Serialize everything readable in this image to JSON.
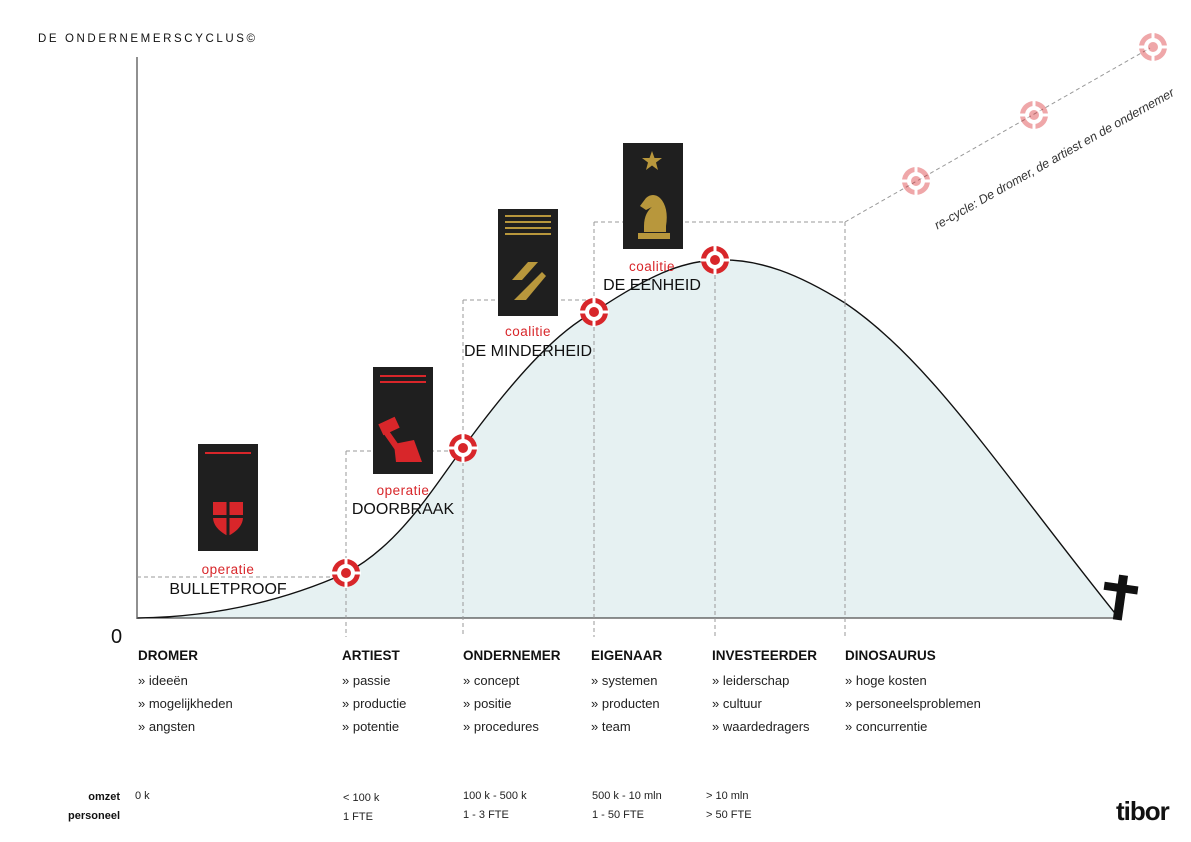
{
  "title": "DE ONDERNEMERSCYCLUS©",
  "axis": {
    "origin_label": "0"
  },
  "recycle_label": "re-cycle: De dromer, de artiest en de ondernemer",
  "phases": [
    {
      "name": "DROMER",
      "items": [
        "» ideeën",
        "» mogelijkheden",
        "» angsten"
      ],
      "omzet": "0 k",
      "personeel": ""
    },
    {
      "name": "ARTIEST",
      "items": [
        "» passie",
        "» productie",
        "» potentie"
      ],
      "omzet": "< 100 k",
      "personeel": "1 FTE"
    },
    {
      "name": "ONDERNEMER",
      "items": [
        "» concept",
        "» positie",
        "» procedures"
      ],
      "omzet": "100 k - 500 k",
      "personeel": "1 - 3 FTE"
    },
    {
      "name": "EIGENAAR",
      "items": [
        "» systemen",
        "» producten",
        "» team"
      ],
      "omzet": "500 k - 10 mln",
      "personeel": "1 - 50 FTE"
    },
    {
      "name": "INVESTEERDER",
      "items": [
        "» leiderschap",
        "» cultuur",
        "» waardedragers"
      ],
      "omzet": "> 10 mln",
      "personeel": "> 50 FTE"
    },
    {
      "name": "DINOSAURUS",
      "items": [
        "» hoge kosten",
        "» personeelsproblemen",
        "» concurrentie"
      ],
      "omzet": "",
      "personeel": ""
    }
  ],
  "row_labels": {
    "omzet": "omzet",
    "personeel": "personeel"
  },
  "cards": [
    {
      "sub": "operatie",
      "main": "BULLETPROOF",
      "icon": "shield-icon",
      "stripes": 1
    },
    {
      "sub": "operatie",
      "main": "DOORBRAAK",
      "icon": "hammer-icon",
      "stripes": 2
    },
    {
      "sub": "coalitie",
      "main": "DE MINDERHEID",
      "icon": "leaf-icon",
      "stripes": 4
    },
    {
      "sub": "coalitie",
      "main": "DE EENHEID",
      "icon": "knight-icon",
      "stripes": 0
    }
  ],
  "colors": {
    "accent": "#d8262a",
    "gold": "#b8973c",
    "card_bg": "#1f1f1f",
    "fill": "#e6f1f2"
  },
  "logo": "tibor"
}
